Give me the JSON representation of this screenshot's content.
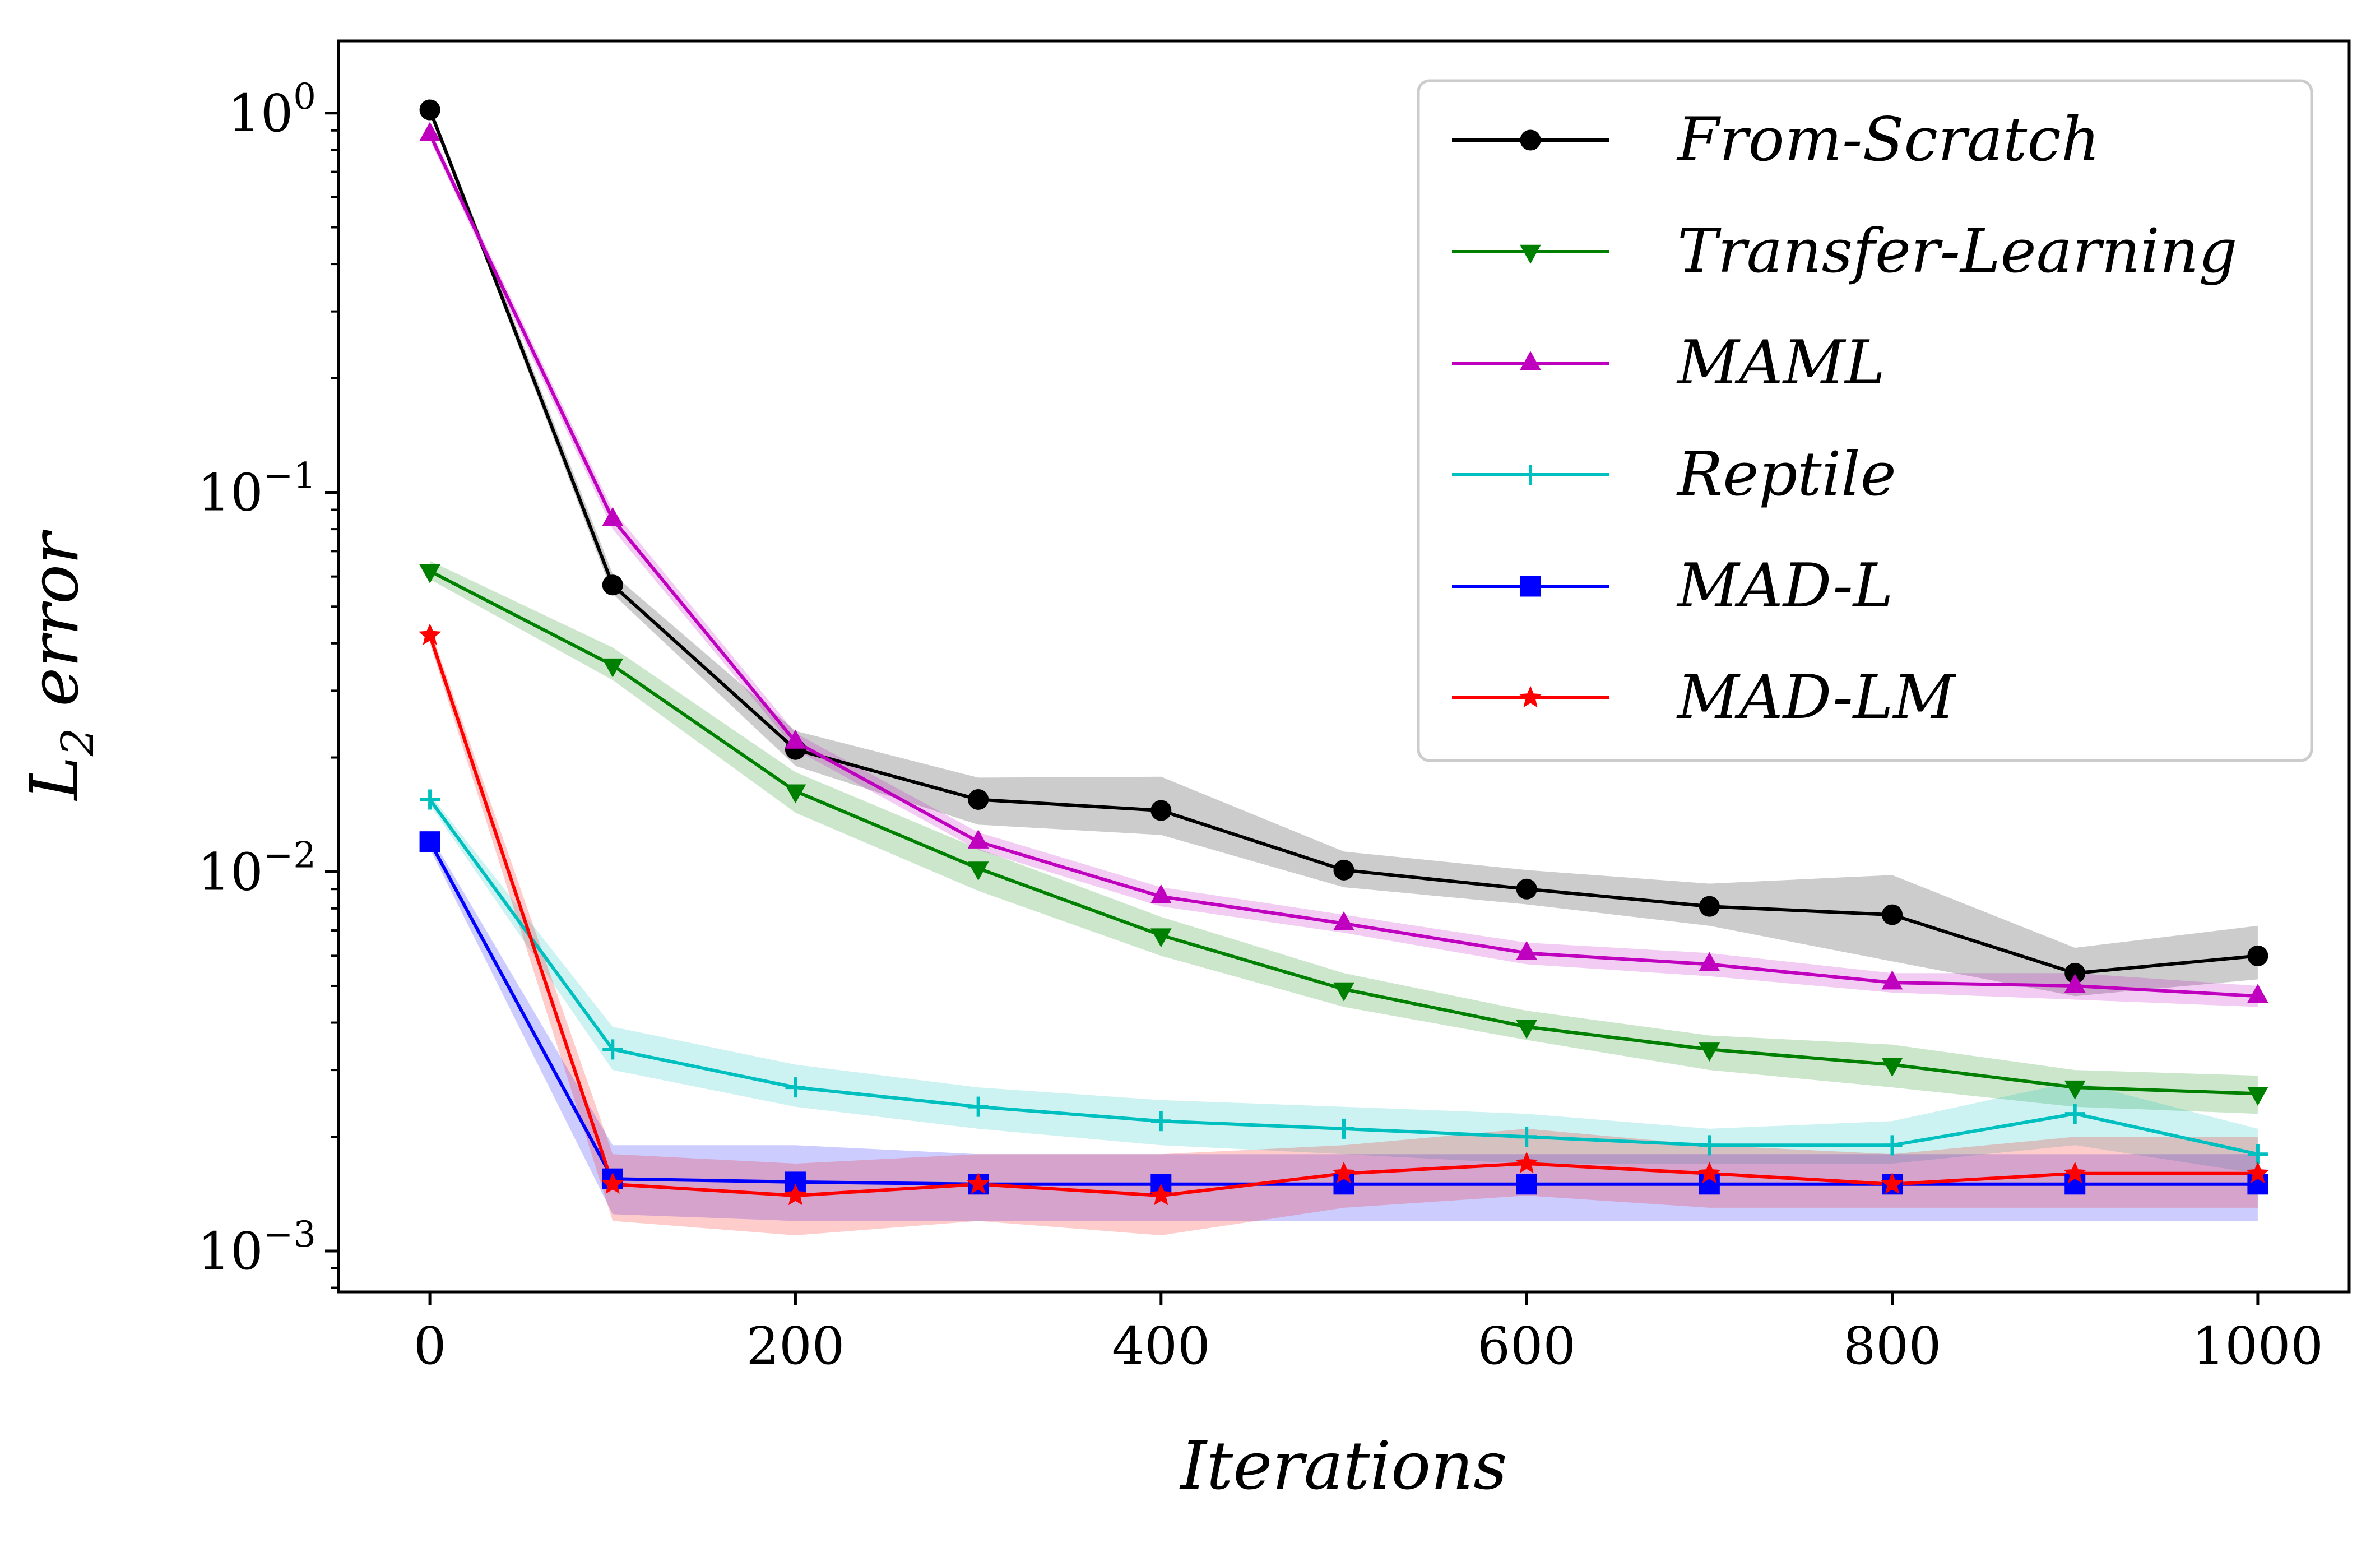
{
  "chart_data": {
    "type": "line",
    "title": "",
    "xlabel": "Iterations",
    "ylabel": "L",
    "ylabel_subscript": "2",
    "ylabel_suffix": " error",
    "yscale": "log",
    "xlim": [
      -50,
      1050
    ],
    "ylim": [
      0.00078,
      1.55
    ],
    "grid": false,
    "legend_position": "top-right",
    "x_ticks": [
      0,
      200,
      400,
      600,
      800,
      1000
    ],
    "x_tick_labels": [
      "0",
      "200",
      "400",
      "600",
      "800",
      "1000"
    ],
    "y_ticks": [
      1,
      0.1,
      0.01,
      0.001
    ],
    "y_tick_bases": [
      "10",
      "10",
      "10",
      "10"
    ],
    "y_tick_exponents": [
      "0",
      "−1",
      "−2",
      "−3"
    ],
    "x": [
      0,
      100,
      200,
      300,
      400,
      500,
      600,
      700,
      800,
      900,
      1000
    ],
    "series": [
      {
        "name": "From-Scratch",
        "color": "#000000",
        "marker": "circle",
        "values": [
          1.02,
          0.057,
          0.021,
          0.0155,
          0.0145,
          0.0101,
          0.009,
          0.0081,
          0.0077,
          0.0054,
          0.006
        ],
        "lower": [
          1.0,
          0.054,
          0.019,
          0.0133,
          0.0125,
          0.0091,
          0.0082,
          0.0072,
          0.0058,
          0.0047,
          0.0052
        ],
        "upper": [
          1.05,
          0.061,
          0.0235,
          0.0177,
          0.0178,
          0.0113,
          0.0101,
          0.0093,
          0.0098,
          0.0063,
          0.0072
        ]
      },
      {
        "name": "Transfer-Learning",
        "color": "#008000",
        "marker": "triangle-down",
        "values": [
          0.062,
          0.035,
          0.0163,
          0.0102,
          0.0068,
          0.0049,
          0.0039,
          0.0034,
          0.0031,
          0.0027,
          0.0026
        ],
        "lower": [
          0.059,
          0.032,
          0.0143,
          0.0089,
          0.006,
          0.0044,
          0.0036,
          0.003,
          0.0027,
          0.0024,
          0.0023
        ],
        "upper": [
          0.066,
          0.039,
          0.0183,
          0.0115,
          0.0076,
          0.0054,
          0.0043,
          0.0037,
          0.0035,
          0.003,
          0.0029
        ]
      },
      {
        "name": "MAML",
        "color": "#bf00bf",
        "marker": "triangle-up",
        "values": [
          0.88,
          0.085,
          0.022,
          0.012,
          0.0086,
          0.0073,
          0.0061,
          0.0057,
          0.0051,
          0.005,
          0.0047
        ],
        "lower": [
          0.85,
          0.08,
          0.021,
          0.0114,
          0.0081,
          0.0069,
          0.0057,
          0.0053,
          0.0048,
          0.0046,
          0.0044
        ],
        "upper": [
          0.91,
          0.09,
          0.0232,
          0.0127,
          0.0091,
          0.0077,
          0.0065,
          0.0061,
          0.0054,
          0.0054,
          0.005
        ]
      },
      {
        "name": "Reptile",
        "color": "#00bfbf",
        "marker": "plus",
        "values": [
          0.0155,
          0.0034,
          0.0027,
          0.0024,
          0.0022,
          0.0021,
          0.002,
          0.0019,
          0.0019,
          0.0023,
          0.0018
        ],
        "lower": [
          0.015,
          0.003,
          0.0024,
          0.0021,
          0.0019,
          0.0018,
          0.0017,
          0.0017,
          0.0017,
          0.0019,
          0.0016
        ],
        "upper": [
          0.016,
          0.0039,
          0.0031,
          0.0027,
          0.0025,
          0.0024,
          0.0023,
          0.0021,
          0.0022,
          0.0028,
          0.0021
        ]
      },
      {
        "name": "MAD-L",
        "color": "#0000ff",
        "marker": "square",
        "values": [
          0.012,
          0.00155,
          0.00152,
          0.0015,
          0.0015,
          0.0015,
          0.0015,
          0.0015,
          0.0015,
          0.0015,
          0.0015
        ],
        "lower": [
          0.0115,
          0.00125,
          0.0012,
          0.0012,
          0.0012,
          0.0012,
          0.0012,
          0.0012,
          0.0012,
          0.0012,
          0.0012
        ],
        "upper": [
          0.0125,
          0.0019,
          0.0019,
          0.0018,
          0.0018,
          0.0018,
          0.0018,
          0.0018,
          0.0018,
          0.0018,
          0.0018
        ]
      },
      {
        "name": "MAD-LM",
        "color": "#ff0000",
        "marker": "star",
        "values": [
          0.042,
          0.0015,
          0.0014,
          0.0015,
          0.0014,
          0.0016,
          0.0017,
          0.0016,
          0.0015,
          0.0016,
          0.0016
        ],
        "lower": [
          0.04,
          0.0012,
          0.0011,
          0.0012,
          0.0011,
          0.0013,
          0.0014,
          0.0013,
          0.0013,
          0.0013,
          0.0013
        ],
        "upper": [
          0.044,
          0.0018,
          0.0017,
          0.0018,
          0.0018,
          0.0019,
          0.0021,
          0.0019,
          0.0018,
          0.002,
          0.002
        ]
      }
    ]
  }
}
